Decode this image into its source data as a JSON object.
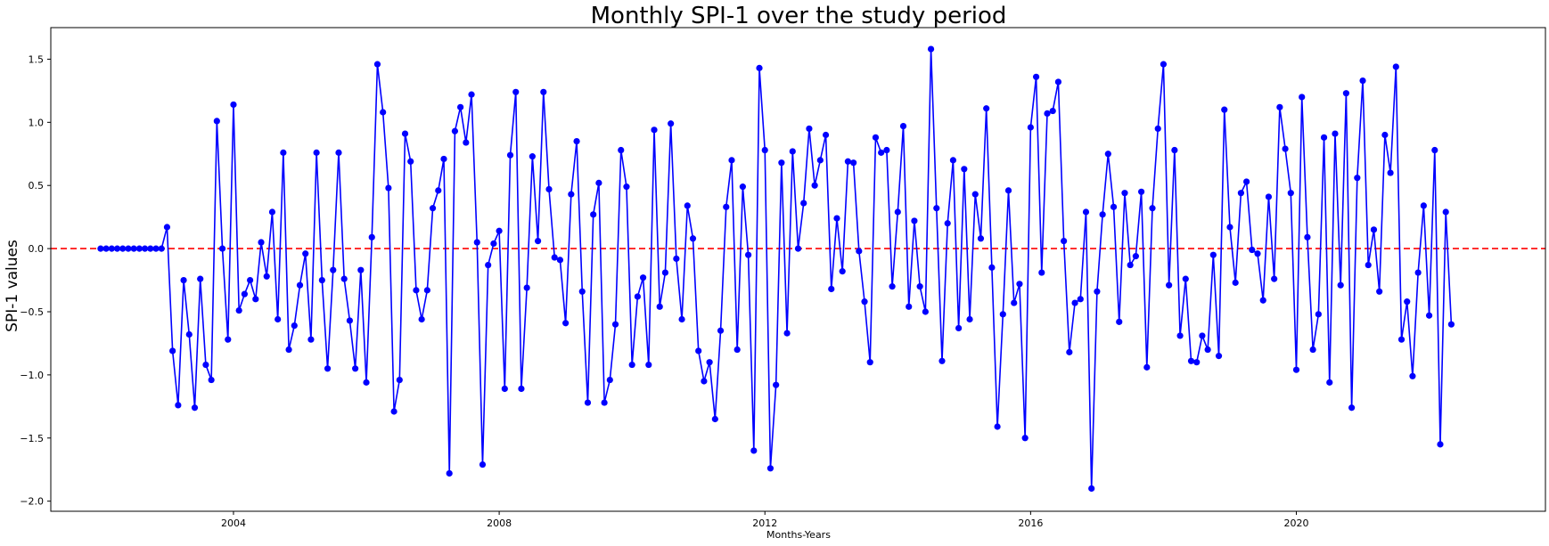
{
  "chart_data": {
    "type": "line",
    "title": "Monthly SPI-1 over the study period",
    "xlabel": "Months-Years",
    "ylabel": "SPI-1 values",
    "x_start": "2002-01",
    "xlim": [
      "2001-04",
      "2023-10"
    ],
    "ylim": [
      -2.08,
      1.75
    ],
    "x_ticks": [
      {
        "label": "2004",
        "date": "2004-01"
      },
      {
        "label": "2008",
        "date": "2008-01"
      },
      {
        "label": "2012",
        "date": "2012-01"
      },
      {
        "label": "2016",
        "date": "2016-01"
      },
      {
        "label": "2020",
        "date": "2020-01"
      }
    ],
    "y_ticks": [
      -2.0,
      -1.5,
      -1.0,
      -0.5,
      0.0,
      0.5,
      1.0,
      1.5
    ],
    "y_tick_labels": [
      "−2.0",
      "−1.5",
      "−1.0",
      "−0.5",
      "0.0",
      "0.5",
      "1.0",
      "1.5"
    ],
    "reference_line": {
      "y": 0.0,
      "color": "#ff0000",
      "style": "dashed"
    },
    "line_color": "#0000ff",
    "marker": "circle",
    "grid": false,
    "series": [
      {
        "values": [
          0,
          0,
          0,
          0,
          0,
          0,
          0,
          0,
          0,
          0,
          0,
          0,
          0.17,
          -0.81,
          -1.24,
          -0.25,
          -0.68,
          -1.26,
          -0.24,
          -0.92,
          -1.04,
          1.01,
          0.0,
          -0.72,
          1.14,
          -0.49,
          -0.36,
          -0.25,
          -0.4,
          0.05,
          -0.22,
          0.29,
          -0.56,
          0.76,
          -0.8,
          -0.61,
          -0.29,
          -0.04,
          -0.72,
          0.76,
          -0.25,
          -0.95,
          -0.17,
          0.76,
          -0.24,
          -0.57,
          -0.95,
          -0.17,
          -1.06,
          0.09,
          1.46,
          1.08,
          0.48,
          -1.29,
          -1.04,
          0.91,
          0.69,
          -0.33,
          -0.56,
          -0.33,
          0.32,
          0.46,
          0.71,
          -1.78,
          0.93,
          1.12,
          0.84,
          1.22,
          0.05,
          -1.71,
          -0.13,
          0.04,
          0.14,
          -1.11,
          0.74,
          1.24,
          -1.11,
          -0.31,
          0.73,
          0.06,
          1.24,
          0.47,
          -0.07,
          -0.09,
          -0.59,
          0.43,
          0.85,
          -0.34,
          -1.22,
          0.27,
          0.52,
          -1.22,
          -1.04,
          -0.6,
          0.78,
          0.49,
          -0.92,
          -0.38,
          -0.23,
          -0.92,
          0.94,
          -0.46,
          -0.19,
          0.99,
          -0.08,
          -0.56,
          0.34,
          0.08,
          -0.81,
          -1.05,
          -0.9,
          -1.35,
          -0.65,
          0.33,
          0.7,
          -0.8,
          0.49,
          -0.05,
          -1.6,
          1.43,
          0.78,
          -1.74,
          -1.08,
          0.68,
          -0.67,
          0.77,
          0.0,
          0.36,
          0.95,
          0.5,
          0.7,
          0.9,
          -0.32,
          0.24,
          -0.18,
          0.69,
          0.68,
          -0.02,
          -0.42,
          -0.9,
          0.88,
          0.76,
          0.78,
          -0.3,
          0.29,
          0.97,
          -0.46,
          0.22,
          -0.3,
          -0.5,
          1.58,
          0.32,
          -0.89,
          0.2,
          0.7,
          -0.63,
          0.63,
          -0.56,
          0.43,
          0.08,
          1.11,
          -0.15,
          -1.41,
          -0.52,
          0.46,
          -0.43,
          -0.28,
          -1.5,
          0.96,
          1.36,
          -0.19,
          1.07,
          1.09,
          1.32,
          0.06,
          -0.82,
          -0.43,
          -0.4,
          0.29,
          -1.9,
          -0.34,
          0.27,
          0.75,
          0.33,
          -0.58,
          0.44,
          -0.13,
          -0.06,
          0.45,
          -0.94,
          0.32,
          0.95,
          1.46,
          -0.29,
          0.78,
          -0.69,
          -0.24,
          -0.89,
          -0.9,
          -0.69,
          -0.8,
          -0.05,
          -0.85,
          1.1,
          0.17,
          -0.27,
          0.44,
          0.53,
          -0.01,
          -0.04,
          -0.41,
          0.41,
          -0.24,
          1.12,
          0.79,
          0.44,
          -0.96,
          1.2,
          0.09,
          -0.8,
          -0.52,
          0.88,
          -1.06,
          0.91,
          -0.29,
          1.23,
          -1.26,
          0.56,
          1.33,
          -0.13,
          0.15,
          -0.34,
          0.9,
          0.6,
          1.44,
          -0.72,
          -0.42,
          -1.01,
          -0.19,
          0.34,
          -0.53,
          0.78,
          -1.55,
          0.29,
          -0.6
        ]
      }
    ]
  }
}
